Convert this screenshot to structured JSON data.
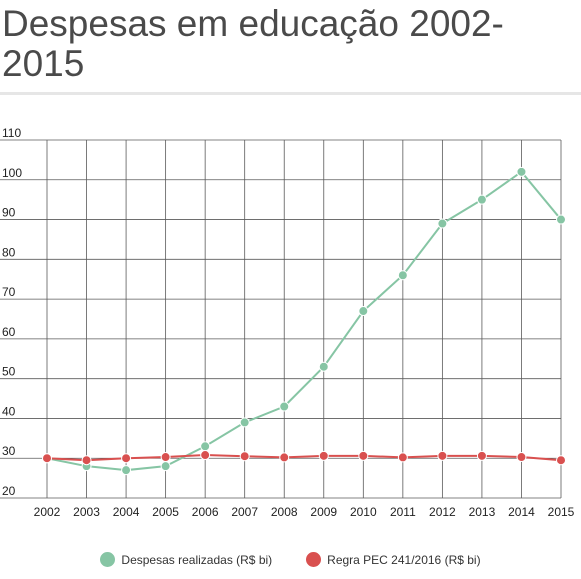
{
  "title": "Despesas em educação 2002-2015",
  "colors": {
    "green": "#86c5a4",
    "red": "#d9504f",
    "grid": "#5a5a5a"
  },
  "chart_data": {
    "type": "line",
    "title": "Despesas em educação 2002-2015",
    "xlabel": "",
    "ylabel": "",
    "categories": [
      "2002",
      "2003",
      "2004",
      "2005",
      "2006",
      "2007",
      "2008",
      "2009",
      "2010",
      "2011",
      "2012",
      "2013",
      "2014",
      "2015"
    ],
    "ylim": [
      20,
      110
    ],
    "yticks": [
      20,
      30,
      40,
      50,
      60,
      70,
      80,
      90,
      100,
      110
    ],
    "grid": true,
    "legend_position": "bottom",
    "series": [
      {
        "name": "Despesas realizadas (R$ bi)",
        "color": "#86c5a4",
        "values": [
          30,
          28,
          27,
          28,
          33,
          39,
          43,
          53,
          67,
          76,
          89,
          95,
          102,
          90
        ]
      },
      {
        "name": "Regra PEC 241/2016 (R$ bi)",
        "color": "#d9504f",
        "values": [
          30,
          29.5,
          30,
          30.3,
          30.8,
          30.5,
          30.2,
          30.6,
          30.6,
          30.2,
          30.6,
          30.6,
          30.3,
          29.5
        ]
      }
    ]
  }
}
